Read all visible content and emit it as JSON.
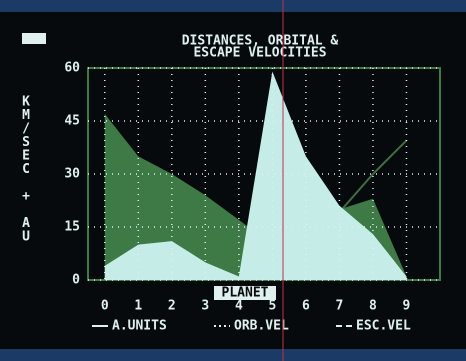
{
  "chart_data": {
    "type": "area",
    "title": [
      "DISTANCES, ORBITAL &",
      "ESCAPE VELOCITIES"
    ],
    "ylabel": "KM/SEC + AU",
    "xlabel": "PLANET",
    "x": [
      0,
      1,
      2,
      3,
      4,
      5,
      6,
      7,
      8,
      9
    ],
    "xlim": [
      -0.5,
      10
    ],
    "xticks": [
      0,
      1,
      2,
      3,
      4,
      5,
      6,
      7,
      8,
      9
    ],
    "ylim": [
      0,
      60
    ],
    "yticks": [
      0,
      15,
      30,
      45,
      60
    ],
    "grid": true,
    "series": [
      {
        "name": "A.UNITS",
        "color": "#3f6e44",
        "style": "solid",
        "fill": false,
        "values": [
          0.4,
          0.7,
          1,
          1.5,
          2,
          5.2,
          9.5,
          19.2,
          30,
          39.5
        ]
      },
      {
        "name": "ORB.VEL",
        "color": "#3d7a45",
        "style": "dotted",
        "fill": true,
        "values": [
          47,
          35,
          30,
          24,
          17,
          10,
          9,
          20,
          23,
          1
        ]
      },
      {
        "name": "ESC.VEL",
        "color": "#c6ece8",
        "style": "dashed",
        "fill": true,
        "values": [
          4,
          10,
          11,
          5,
          1,
          59,
          35,
          21,
          13,
          1
        ]
      }
    ]
  }
}
